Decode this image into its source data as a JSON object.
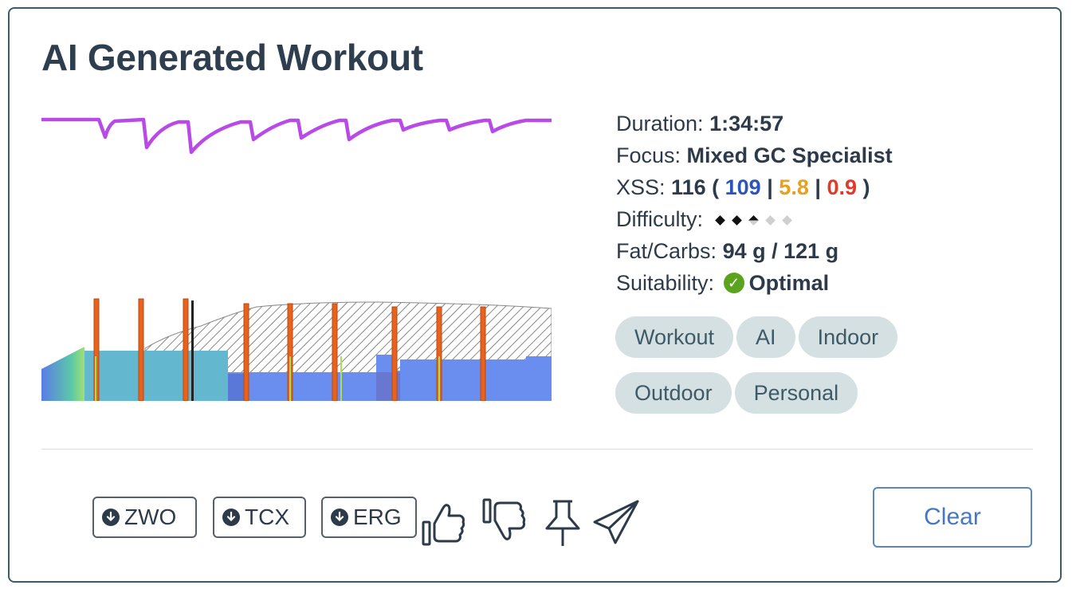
{
  "title": "AI Generated Workout",
  "stats": {
    "duration_label": "Duration:",
    "duration_value": "1:34:57",
    "focus_label": "Focus:",
    "focus_value": "Mixed GC Specialist",
    "xss_label": "XSS:",
    "xss_total": "116",
    "xss_open": "(",
    "xss_blue": "109",
    "xss_orange": "5.8",
    "xss_red": "0.9",
    "xss_sep": "|",
    "xss_close": ")",
    "difficulty_label": "Difficulty:",
    "difficulty_level": 2.5,
    "difficulty_max": 5,
    "fatcarbs_label": "Fat/Carbs:",
    "fatcarbs_value": "94 g / 121 g",
    "suitability_label": "Suitability:",
    "suitability_value": "Optimal"
  },
  "tags": [
    {
      "label": "Workout",
      "active": true
    },
    {
      "label": "AI",
      "active": false
    },
    {
      "label": "Indoor",
      "active": false
    },
    {
      "label": "Outdoor",
      "active": false
    },
    {
      "label": "Personal",
      "active": false
    }
  ],
  "downloads": [
    {
      "label": "ZWO",
      "icon": "download-icon"
    },
    {
      "label": "TCX",
      "icon": "download-icon"
    },
    {
      "label": "ERG",
      "icon": "download-icon"
    }
  ],
  "actions": [
    "thumbs-up-icon",
    "thumbs-down-icon",
    "pin-icon",
    "send-icon"
  ],
  "clear_label": "Clear",
  "colors": {
    "accent_blue": "#4578c0",
    "curve_purple": "#b84ae8",
    "interval_orange": "#e8621e",
    "block_teal": "#63b8cf",
    "block_blue": "#6a8ef0",
    "check_green": "#5aa31e"
  }
}
